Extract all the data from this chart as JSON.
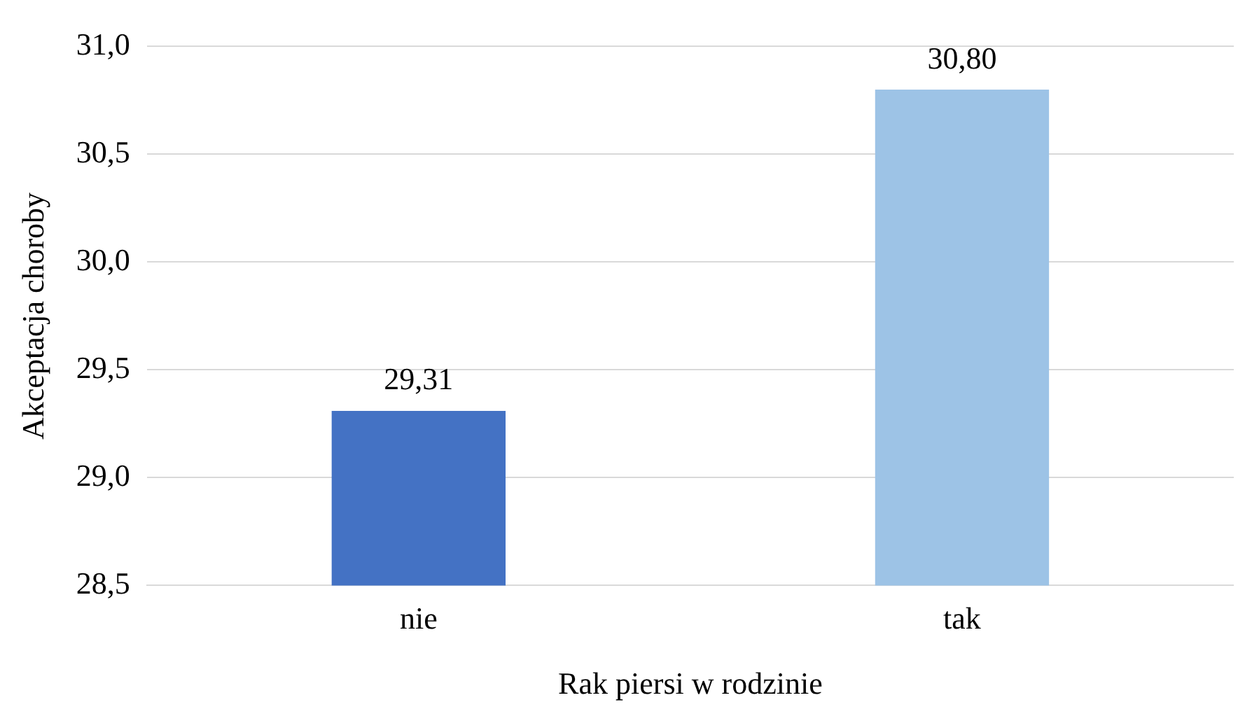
{
  "chart_data": {
    "type": "bar",
    "xlabel": "Rak piersi w rodzinie",
    "ylabel": "Akceptacja choroby",
    "categories": [
      "nie",
      "tak"
    ],
    "values": [
      29.31,
      30.8
    ],
    "colors": [
      "#4472c4",
      "#9dc3e6"
    ],
    "value_labels": [
      "29,31",
      "30,80"
    ],
    "ylim": [
      28.5,
      31.0
    ],
    "yticks": [
      {
        "value": 28.5,
        "label": "28,5"
      },
      {
        "value": 29.0,
        "label": "29,0"
      },
      {
        "value": 29.5,
        "label": "29,5"
      },
      {
        "value": 30.0,
        "label": "30,0"
      },
      {
        "value": 30.5,
        "label": "30,5"
      },
      {
        "value": 31.0,
        "label": "31,0"
      }
    ],
    "grid": "y",
    "legend": false
  }
}
